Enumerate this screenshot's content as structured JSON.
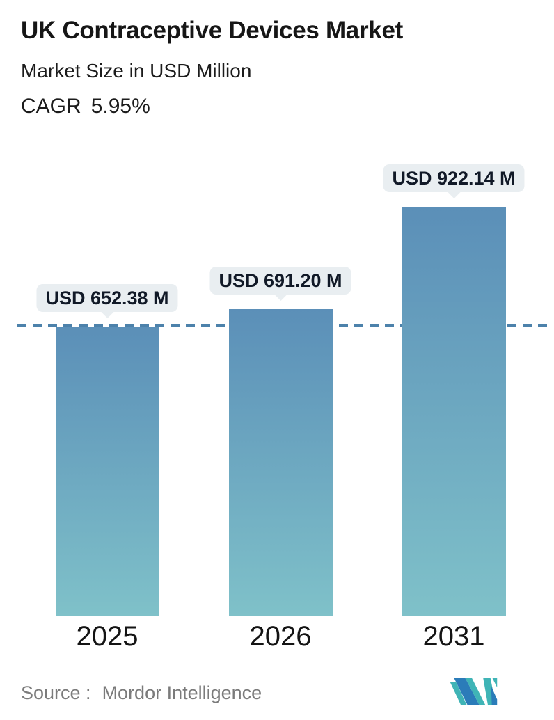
{
  "header": {
    "title": "UK Contraceptive Devices Market",
    "subtitle": "Market Size in USD Million",
    "cagr_label": "CAGR",
    "cagr_value": "5.95%"
  },
  "chart_data": {
    "type": "bar",
    "categories": [
      "2025",
      "2026",
      "2031"
    ],
    "values": [
      652.38,
      691.2,
      922.14
    ],
    "value_labels": [
      "USD 652.38 M",
      "USD 691.20 M",
      "USD 922.14 M"
    ],
    "title": "UK Contraceptive Devices Market",
    "subtitle": "Market Size in USD Million",
    "xlabel": "",
    "ylabel": "Market Size in USD Million",
    "ylim": [
      0,
      922.14
    ],
    "grid": false,
    "legend": "none",
    "reference_line": {
      "value": 652.38,
      "style": "dashed",
      "color": "#4d82ab"
    },
    "bar_gradient_top": "#5b8fb8",
    "bar_gradient_bottom": "#7fc1c9",
    "callout_bg": "#e9eef1",
    "callout_text_color": "#111927"
  },
  "footer": {
    "source_label": "Source :",
    "source_value": "Mordor Intelligence",
    "logo": "mordor-intelligence-logo"
  },
  "colors": {
    "accent_blue": "#5a8fc0",
    "text_dark": "#1c1c1c",
    "source_gray": "#7b7b7b"
  }
}
